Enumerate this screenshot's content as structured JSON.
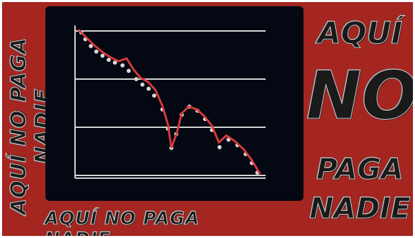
{
  "slogan_side": "AQUÍ NO PAGA NADIE",
  "slogan_bottom": "AQUÍ NO PAGA NADIE",
  "big_words": [
    "AQUÍ",
    "NO",
    "PAGA",
    "NADIE"
  ],
  "colors": {
    "background": "#a52520",
    "panel": "#030812",
    "line": "#d93a3a",
    "grid": "#d8d8d8"
  }
}
